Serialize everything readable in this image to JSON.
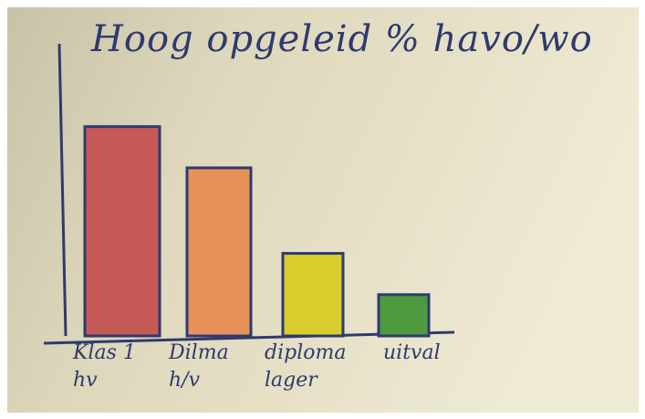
{
  "chart_data": {
    "type": "bar",
    "title": "Hoog opgeleid % havo/wo",
    "categories": [
      "Klas 1 hv",
      "Dilma h/v",
      "diploma lager",
      "uitval"
    ],
    "values": [
      71,
      57,
      28,
      14
    ],
    "colors": [
      "#c55a57",
      "#e8925a",
      "#d9cc2c",
      "#4e9a3e"
    ],
    "ylim": [
      0,
      100
    ]
  }
}
